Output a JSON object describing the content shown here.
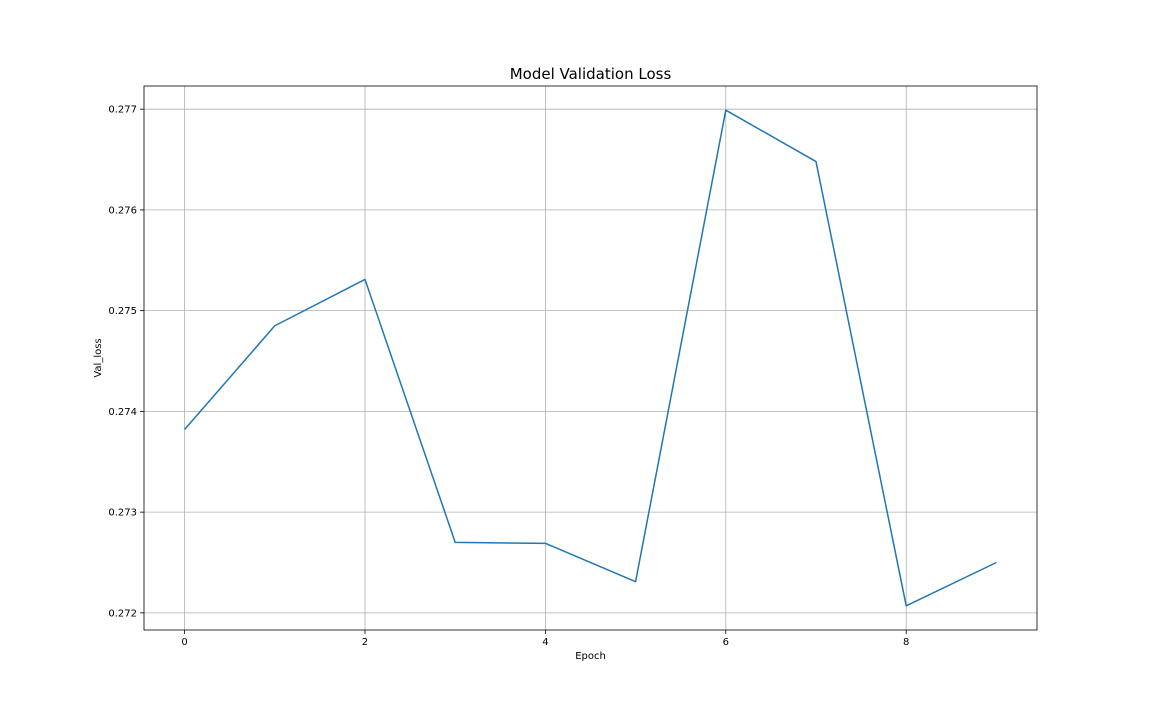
{
  "chart_data": {
    "type": "line",
    "title": "Model Validation Loss",
    "xlabel": "Epoch",
    "ylabel": "Val_loss",
    "xlim": [
      -0.45,
      9.45
    ],
    "ylim": [
      0.27183,
      0.27723
    ],
    "xticks": [
      0,
      2,
      4,
      6,
      8
    ],
    "xtick_labels": [
      "0",
      "2",
      "4",
      "6",
      "8"
    ],
    "yticks": [
      0.272,
      0.273,
      0.274,
      0.275,
      0.276,
      0.277
    ],
    "ytick_labels": [
      "0.272",
      "0.273",
      "0.274",
      "0.275",
      "0.276",
      "0.277"
    ],
    "grid": true,
    "legend": "none",
    "series": [
      {
        "color": "#1f77b4",
        "x": [
          0,
          1,
          2,
          3,
          4,
          5,
          6,
          7,
          8,
          9
        ],
        "y": [
          0.27382,
          0.27485,
          0.27531,
          0.2727,
          0.27269,
          0.27231,
          0.27699,
          0.27648,
          0.27207,
          0.2725
        ]
      }
    ]
  }
}
